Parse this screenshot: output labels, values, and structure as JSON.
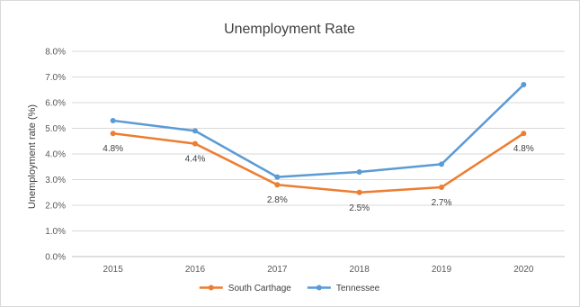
{
  "chart_data": {
    "type": "line",
    "title": "Unemployment Rate",
    "xlabel": "",
    "ylabel": "Unemployment rate (%)",
    "categories": [
      "2015",
      "2016",
      "2017",
      "2018",
      "2019",
      "2020"
    ],
    "ylim": [
      0,
      8
    ],
    "y_ticks": [
      "0.0%",
      "1.0%",
      "2.0%",
      "3.0%",
      "4.0%",
      "5.0%",
      "6.0%",
      "7.0%",
      "8.0%"
    ],
    "grid": true,
    "legend_position": "bottom",
    "series": [
      {
        "name": "South Carthage",
        "color": "#ED7D31",
        "values": [
          4.8,
          4.4,
          2.8,
          2.5,
          2.7,
          4.8
        ],
        "labels": [
          "4.8%",
          "4.4%",
          "2.8%",
          "2.5%",
          "2.7%",
          "4.8%"
        ]
      },
      {
        "name": "Tennessee",
        "color": "#5B9BD5",
        "values": [
          5.3,
          4.9,
          3.1,
          3.3,
          3.6,
          6.7
        ]
      }
    ]
  }
}
